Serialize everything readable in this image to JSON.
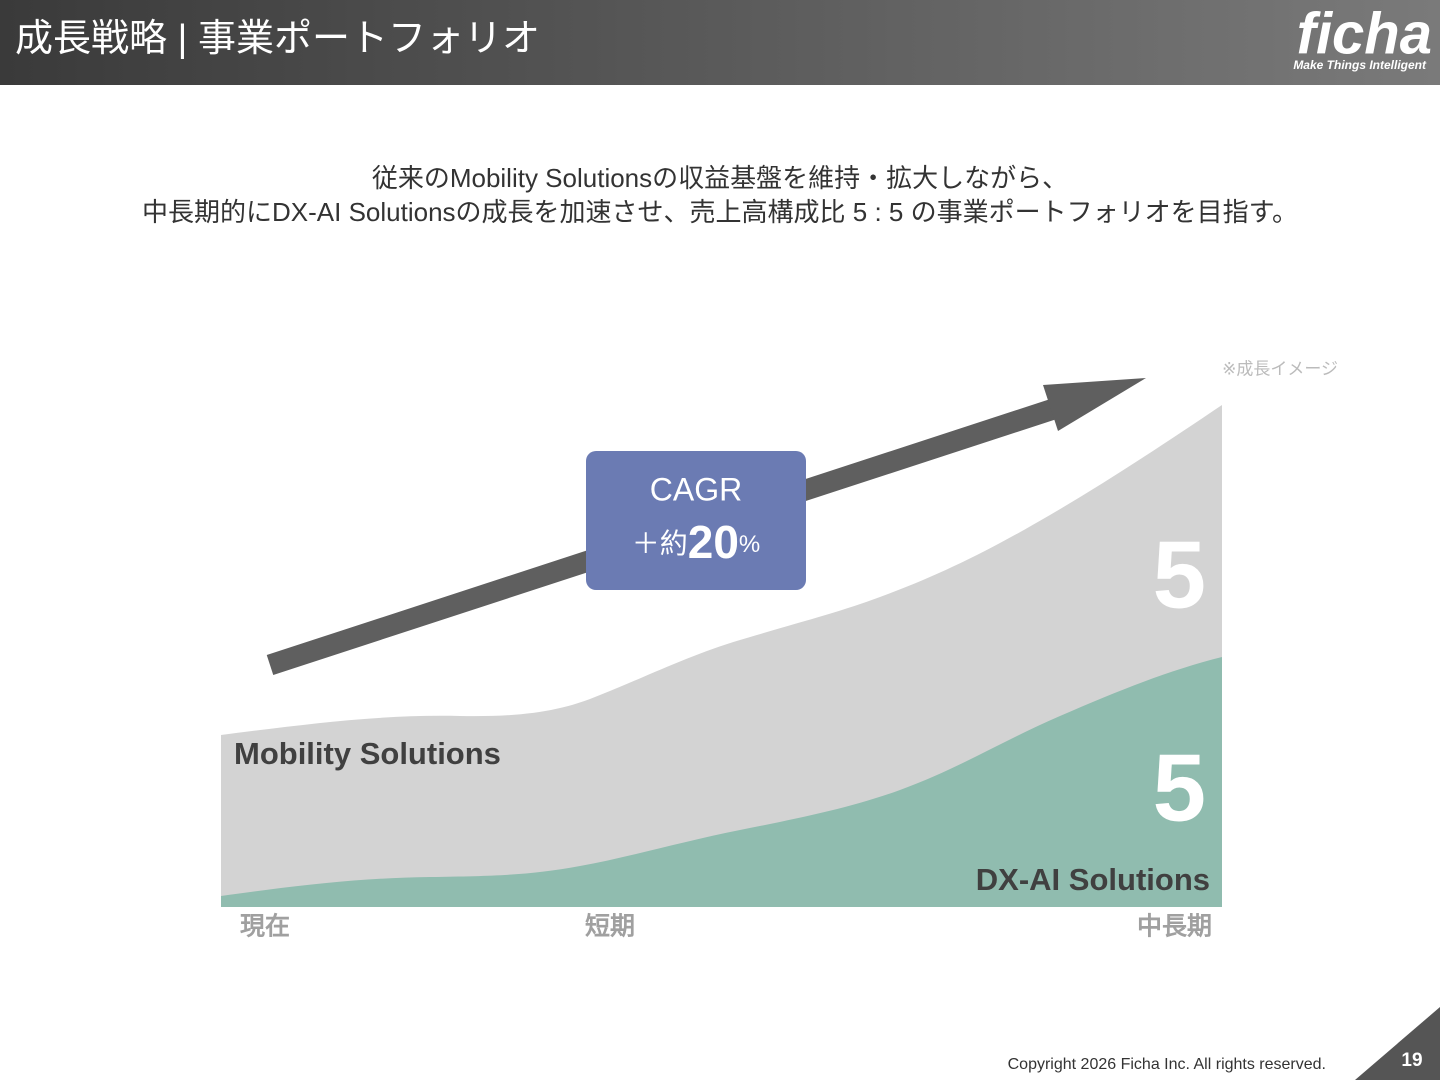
{
  "header": {
    "title": "成長戦略 | 事業ポートフォリオ",
    "logo": "ficha",
    "tagline": "Make Things Intelligent"
  },
  "lead": {
    "lines": [
      "従来のMobility Solutionsの収益基盤を維持・拡大しながら、",
      "中長期的にDX-AI Solutionsの成長を加速させ、売上高構成比 5 : 5 の事業ポートフォリオを目指す。"
    ]
  },
  "diagram": {
    "note": "※成長イメージ",
    "cagr": {
      "label": "CAGR",
      "prefix": "＋約",
      "value": "20",
      "unit": "%"
    },
    "segments": [
      {
        "name": "Mobility Solutions",
        "ratio": "5"
      },
      {
        "name": "DX-AI Solutions",
        "ratio": "5"
      }
    ],
    "periods": [
      "現在",
      "短期",
      "中長期"
    ]
  },
  "footer": {
    "copyright": "Copyright 2026 Ficha Inc. All rights reserved.",
    "page": "19"
  }
}
